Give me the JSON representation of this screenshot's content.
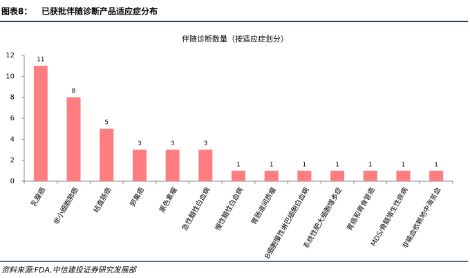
{
  "header": {
    "label": "图表8：",
    "title": "已获批伴随诊断产品适应症分布"
  },
  "chart_data": {
    "type": "bar",
    "title": "伴随诊断数量（按适应症划分）",
    "categories": [
      "乳腺癌",
      "非小细胞肺癌",
      "结直肠癌",
      "卵巢癌",
      "黑色素瘤",
      "急性髓性白血病",
      "慢性髓性白血病",
      "胃肠道间质瘤",
      "B细胞慢性淋巴细胞白血病",
      "系统性肥大细胞增多症",
      "胃癌和胃食管癌",
      "MDS/骨髓增生性疾病",
      "非输血依赖地中海贫血"
    ],
    "values": [
      11,
      8,
      5,
      3,
      3,
      3,
      1,
      1,
      1,
      1,
      1,
      1,
      1
    ],
    "color": "#ff7c80",
    "ylim": [
      0,
      12
    ],
    "yticks": [
      0,
      2,
      4,
      6,
      8,
      10,
      12
    ],
    "grid": false
  },
  "footer": {
    "source": "资料来源:FDA,中信建投证券研究发展部"
  }
}
